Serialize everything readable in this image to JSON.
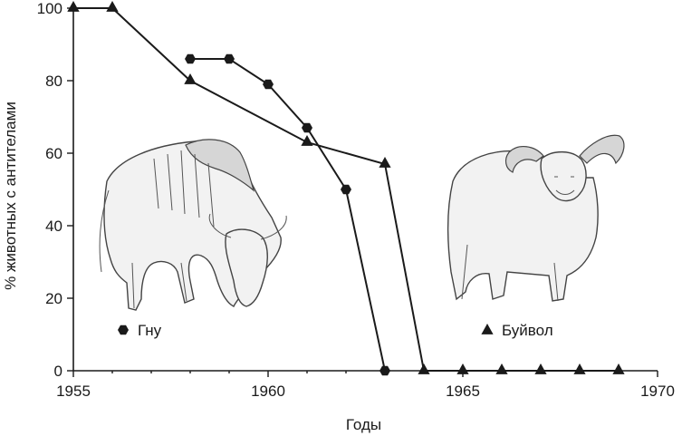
{
  "chart_data": {
    "type": "line",
    "title": "",
    "xlabel": "Годы",
    "ylabel": "% животных с антителами",
    "xlim": [
      1955,
      1970
    ],
    "ylim": [
      0,
      100
    ],
    "x_ticks": [
      "1955",
      "1960",
      "1965",
      "1970"
    ],
    "y_ticks": [
      "0",
      "20",
      "40",
      "60",
      "80",
      "100"
    ],
    "grid": false,
    "series": [
      {
        "name": "Гну",
        "marker": "hexagon",
        "points": [
          {
            "x": 1958,
            "y": 86
          },
          {
            "x": 1959,
            "y": 86
          },
          {
            "x": 1960,
            "y": 79
          },
          {
            "x": 1961,
            "y": 67
          },
          {
            "x": 1962,
            "y": 50
          },
          {
            "x": 1963,
            "y": 0
          }
        ]
      },
      {
        "name": "Буйвол",
        "marker": "triangle",
        "points": [
          {
            "x": 1955,
            "y": 100
          },
          {
            "x": 1956,
            "y": 100
          },
          {
            "x": 1958,
            "y": 80
          },
          {
            "x": 1961,
            "y": 63
          },
          {
            "x": 1963,
            "y": 57
          },
          {
            "x": 1964,
            "y": 0
          },
          {
            "x": 1965,
            "y": 0
          },
          {
            "x": 1966,
            "y": 0
          },
          {
            "x": 1967,
            "y": 0
          },
          {
            "x": 1968,
            "y": 0
          },
          {
            "x": 1969,
            "y": 0
          }
        ]
      }
    ],
    "illustrations": [
      "wildebeest-illustration",
      "buffalo-illustration"
    ]
  }
}
